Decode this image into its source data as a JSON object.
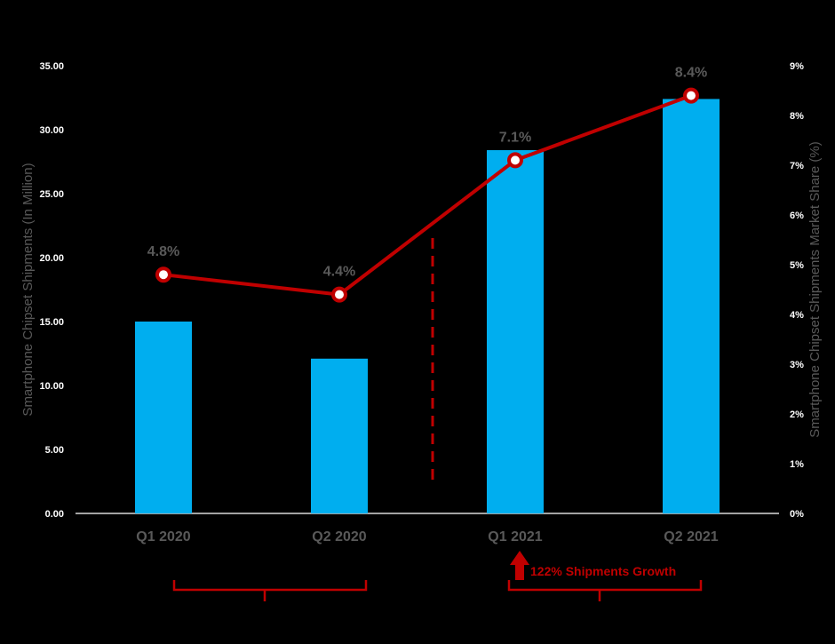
{
  "chart_data": {
    "type": "bar",
    "categories": [
      "Q1 2020",
      "Q2 2020",
      "Q1 2021",
      "Q2 2021"
    ],
    "series": [
      {
        "type": "bar",
        "axis": "left",
        "values": [
          15.0,
          12.1,
          28.4,
          32.4
        ]
      },
      {
        "type": "line",
        "axis": "right",
        "values": [
          4.8,
          4.4,
          7.1,
          8.4
        ],
        "labels": [
          "4.8%",
          "4.4%",
          "7.1%",
          "8.4%"
        ]
      }
    ],
    "y_left": {
      "label": "Smartphone Chipset Shipments (In Million)",
      "ticks": [
        "0.00",
        "5.00",
        "10.00",
        "15.00",
        "20.00",
        "25.00",
        "30.00",
        "35.00"
      ],
      "ylim": [
        0,
        35
      ]
    },
    "y_right": {
      "label": "Smartphone Chipset Shipments Market Share (%)",
      "ticks": [
        "0%",
        "1%",
        "2%",
        "3%",
        "4%",
        "5%",
        "6%",
        "7%",
        "8%",
        "9%"
      ],
      "ylim": [
        0,
        9
      ]
    },
    "annotation": "122% Shipments Growth",
    "grid": false,
    "colors": {
      "bar": "#00AEEF",
      "line": "#C00000",
      "background": "#000000",
      "text": "#595959"
    }
  }
}
